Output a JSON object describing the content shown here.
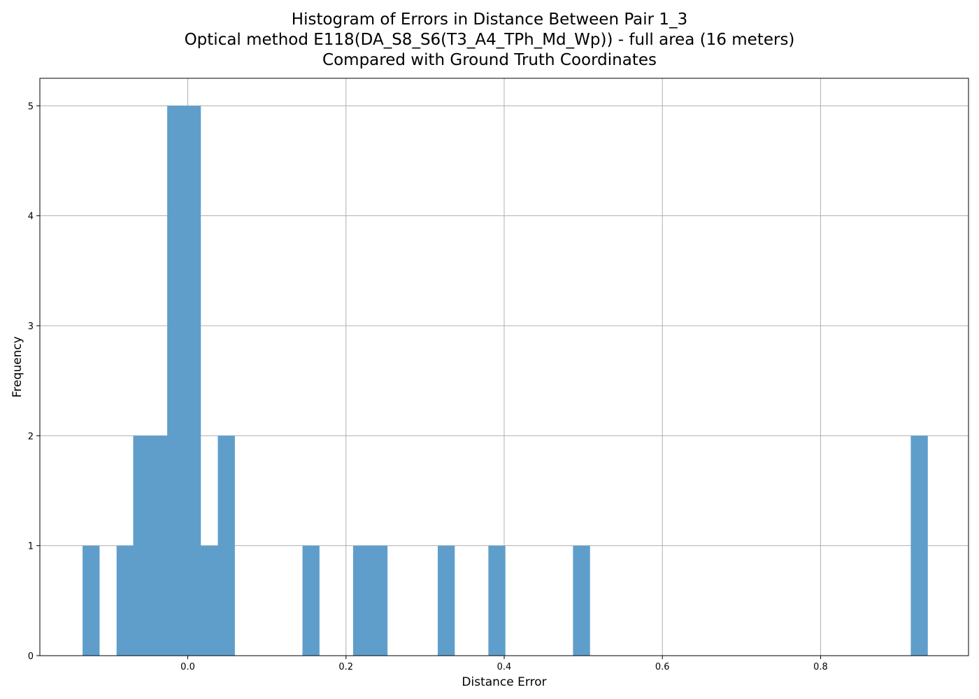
{
  "chart_data": {
    "type": "bar",
    "title_lines": [
      "Histogram of Errors in Distance Between Pair 1_3",
      "Optical method E118(DA_S8_S6(T3_A4_TPh_Md_Wp)) - full area (16 meters)",
      "Compared with Ground Truth Coordinates"
    ],
    "xlabel": "Distance Error",
    "ylabel": "Frequency",
    "xlim": [
      -0.187,
      0.987
    ],
    "ylim": [
      0,
      5.25
    ],
    "x_ticks": [
      0.0,
      0.2,
      0.4,
      0.6,
      0.8
    ],
    "x_tick_labels": [
      "0.0",
      "0.2",
      "0.4",
      "0.6",
      "0.8"
    ],
    "y_ticks": [
      0,
      1,
      2,
      3,
      4,
      5
    ],
    "y_tick_labels": [
      "0",
      "1",
      "2",
      "3",
      "4",
      "5"
    ],
    "grid": true,
    "bar_color": "#5f9ecb",
    "bins": [
      {
        "x0": -0.133,
        "x1": -0.112,
        "count": 1
      },
      {
        "x0": -0.09,
        "x1": -0.069,
        "count": 1
      },
      {
        "x0": -0.069,
        "x1": -0.048,
        "count": 2
      },
      {
        "x0": -0.048,
        "x1": -0.026,
        "count": 2
      },
      {
        "x0": -0.026,
        "x1": -0.005,
        "count": 5
      },
      {
        "x0": -0.005,
        "x1": 0.016,
        "count": 5
      },
      {
        "x0": 0.016,
        "x1": 0.038,
        "count": 1
      },
      {
        "x0": 0.038,
        "x1": 0.059,
        "count": 2
      },
      {
        "x0": 0.145,
        "x1": 0.166,
        "count": 1
      },
      {
        "x0": 0.209,
        "x1": 0.23,
        "count": 1
      },
      {
        "x0": 0.23,
        "x1": 0.252,
        "count": 1
      },
      {
        "x0": 0.316,
        "x1": 0.337,
        "count": 1
      },
      {
        "x0": 0.38,
        "x1": 0.401,
        "count": 1
      },
      {
        "x0": 0.487,
        "x1": 0.508,
        "count": 1
      },
      {
        "x0": 0.914,
        "x1": 0.935,
        "count": 2
      }
    ]
  }
}
